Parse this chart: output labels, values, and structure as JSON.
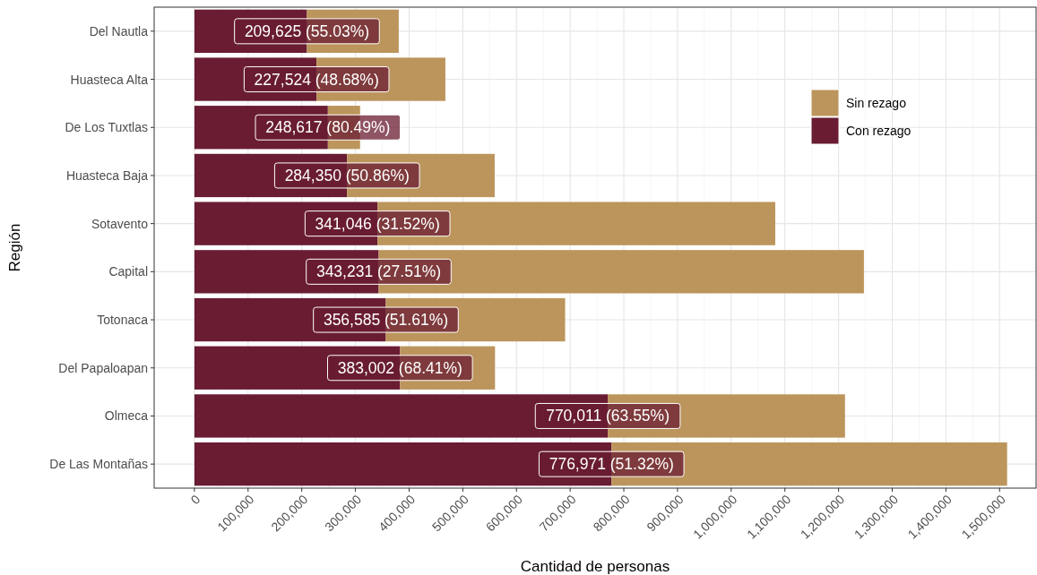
{
  "chart_data": {
    "type": "bar",
    "orientation": "horizontal",
    "stacked": true,
    "xlabel": "Cantidad de personas",
    "ylabel": "Región",
    "categories": [
      "Del Nautla",
      "Huasteca Alta",
      "De Los Tuxtlas",
      "Huasteca Baja",
      "Sotavento",
      "Capital",
      "Totonaca",
      "Del Papaloapan",
      "Olmeca",
      "De Las Montañas"
    ],
    "series": [
      {
        "name": "Con rezago",
        "color": "#691c32",
        "values": [
          209625,
          227524,
          248617,
          284350,
          341046,
          343231,
          356585,
          383002,
          770011,
          776971
        ],
        "value_labels": [
          "209,625 (55.03%)",
          "227,524 (48.68%)",
          "248,617 (80.49%)",
          "284,350 (50.86%)",
          "341,046 (31.52%)",
          "343,231 (27.51%)",
          "356,585 (51.61%)",
          "383,002 (68.41%)",
          "770,011 (63.55%)",
          "776,971 (51.32%)"
        ]
      },
      {
        "name": "Sin rezago",
        "color": "#bc955c",
        "values": [
          171000,
          240000,
          60000,
          275000,
          741000,
          904000,
          334000,
          177000,
          442000,
          737000
        ]
      }
    ],
    "xlim": [
      -75000,
      1568000
    ],
    "xticks": [
      {
        "value": 0,
        "label": "0"
      },
      {
        "value": 100000,
        "label": "100,000"
      },
      {
        "value": 200000,
        "label": "200,000"
      },
      {
        "value": 300000,
        "label": "300,000"
      },
      {
        "value": 400000,
        "label": "400,000"
      },
      {
        "value": 500000,
        "label": "500,000"
      },
      {
        "value": 600000,
        "label": "600,000"
      },
      {
        "value": 700000,
        "label": "700,000"
      },
      {
        "value": 800000,
        "label": "800,000"
      },
      {
        "value": 900000,
        "label": "900,000"
      },
      {
        "value": 1000000,
        "label": "1,000,000"
      },
      {
        "value": 1100000,
        "label": "1,100,000"
      },
      {
        "value": 1200000,
        "label": "1,200,000"
      },
      {
        "value": 1300000,
        "label": "1,300,000"
      },
      {
        "value": 1400000,
        "label": "1,400,000"
      },
      {
        "value": 1500000,
        "label": "1,500,000"
      }
    ],
    "grid": true,
    "legend": "top right"
  }
}
